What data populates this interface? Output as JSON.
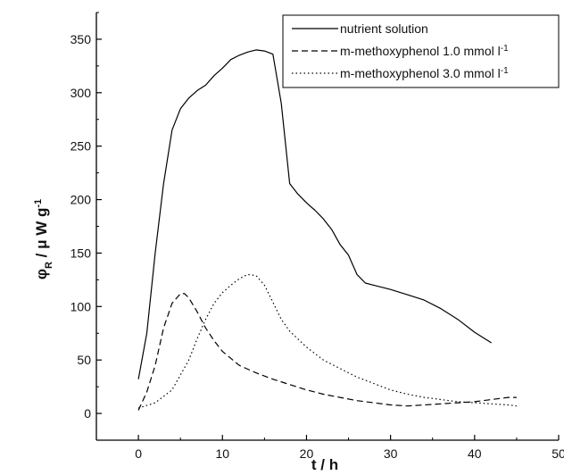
{
  "chart_data": {
    "type": "line",
    "xlim": [
      -5,
      50
    ],
    "ylim": [
      -25,
      375
    ],
    "x_ticks": [
      0,
      10,
      20,
      30,
      40,
      50
    ],
    "y_ticks": [
      0,
      50,
      100,
      150,
      200,
      250,
      300,
      350
    ],
    "xlabel": {
      "main": "t",
      "sep": "/",
      "unit": "h"
    },
    "ylabel": {
      "sym": "φ",
      "sub": "R",
      "sep": "/",
      "mu": "μ",
      "w": "W",
      "g": "g",
      "exp": "-1"
    },
    "legend_position": "top-right",
    "series": [
      {
        "name": "nutrient solution",
        "unit_exp": "",
        "style": "solid",
        "color": "#000000",
        "points": [
          [
            0,
            32
          ],
          [
            1,
            75
          ],
          [
            2,
            150
          ],
          [
            3,
            215
          ],
          [
            4,
            265
          ],
          [
            5,
            285
          ],
          [
            6,
            295
          ],
          [
            7,
            302
          ],
          [
            8,
            307
          ],
          [
            9,
            316
          ],
          [
            10,
            323
          ],
          [
            11,
            331
          ],
          [
            12,
            335
          ],
          [
            13,
            338
          ],
          [
            14,
            340
          ],
          [
            15,
            339
          ],
          [
            16,
            336
          ],
          [
            17,
            290
          ],
          [
            18,
            215
          ],
          [
            19,
            205
          ],
          [
            20,
            197
          ],
          [
            21,
            190
          ],
          [
            22,
            182
          ],
          [
            23,
            172
          ],
          [
            24,
            158
          ],
          [
            25,
            148
          ],
          [
            26,
            130
          ],
          [
            27,
            122
          ],
          [
            28,
            120
          ],
          [
            30,
            116
          ],
          [
            32,
            111
          ],
          [
            34,
            106
          ],
          [
            36,
            98
          ],
          [
            38,
            88
          ],
          [
            40,
            76
          ],
          [
            42,
            66
          ]
        ]
      },
      {
        "name": "m-methoxyphenol 1.0 mmol l",
        "unit_exp": "-1",
        "style": "dashed",
        "color": "#000000",
        "points": [
          [
            0,
            3
          ],
          [
            1,
            20
          ],
          [
            2,
            45
          ],
          [
            3,
            80
          ],
          [
            4,
            103
          ],
          [
            5,
            112
          ],
          [
            5.5,
            112
          ],
          [
            6,
            108
          ],
          [
            7,
            95
          ],
          [
            8,
            80
          ],
          [
            9,
            68
          ],
          [
            10,
            58
          ],
          [
            12,
            45
          ],
          [
            14,
            38
          ],
          [
            16,
            32
          ],
          [
            18,
            27
          ],
          [
            20,
            22
          ],
          [
            22,
            18
          ],
          [
            24,
            15
          ],
          [
            26,
            12
          ],
          [
            28,
            10
          ],
          [
            30,
            8
          ],
          [
            32,
            7
          ],
          [
            34,
            8
          ],
          [
            36,
            9
          ],
          [
            38,
            10
          ],
          [
            40,
            11
          ],
          [
            42,
            13
          ],
          [
            44,
            15
          ],
          [
            45,
            15
          ]
        ]
      },
      {
        "name": "m-methoxyphenol 3.0 mmol l",
        "unit_exp": "-1",
        "style": "dotted",
        "color": "#000000",
        "points": [
          [
            0,
            5
          ],
          [
            2,
            10
          ],
          [
            4,
            22
          ],
          [
            6,
            50
          ],
          [
            7,
            70
          ],
          [
            8,
            88
          ],
          [
            9,
            103
          ],
          [
            10,
            113
          ],
          [
            11,
            120
          ],
          [
            12,
            126
          ],
          [
            13,
            130
          ],
          [
            14,
            129
          ],
          [
            15,
            120
          ],
          [
            16,
            104
          ],
          [
            17,
            88
          ],
          [
            18,
            77
          ],
          [
            20,
            62
          ],
          [
            22,
            50
          ],
          [
            24,
            42
          ],
          [
            26,
            34
          ],
          [
            28,
            28
          ],
          [
            30,
            22
          ],
          [
            32,
            18
          ],
          [
            34,
            15
          ],
          [
            36,
            13
          ],
          [
            38,
            11
          ],
          [
            40,
            10
          ],
          [
            42,
            9
          ],
          [
            44,
            8
          ],
          [
            45,
            7
          ]
        ]
      }
    ]
  }
}
